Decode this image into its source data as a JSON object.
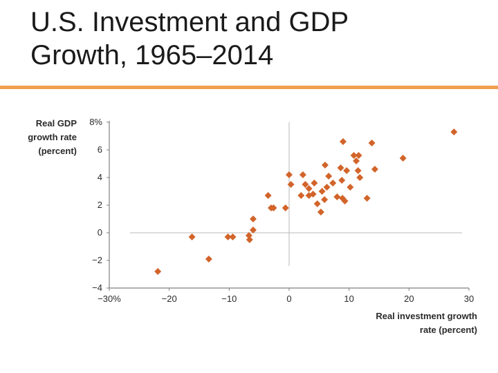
{
  "title_line1": "U.S. Investment and GDP",
  "title_line2": "Growth, 1965–2014",
  "colors": {
    "accent": "#f0a050",
    "marker": "#d2642a",
    "axis": "#7f7f7f",
    "grid": "#b8b8b8"
  },
  "chart_data": {
    "type": "scatter",
    "title": "U.S. Investment and GDP Growth, 1965–2014",
    "xlabel_lines": [
      "Real investment growth",
      "rate (percent)"
    ],
    "ylabel_lines": [
      "Real GDP",
      "growth rate",
      "(percent)"
    ],
    "xlim": [
      -30,
      30
    ],
    "ylim": [
      -4,
      8
    ],
    "xticks": [
      -30,
      -20,
      -10,
      0,
      10,
      20,
      30
    ],
    "yticks": [
      -4,
      -2,
      0,
      2,
      4,
      6,
      8
    ],
    "xtick_labels": [
      "−30%",
      "−20",
      "−10",
      "0",
      "10",
      "20",
      "30"
    ],
    "ytick_labels": [
      "−4",
      "−2",
      "0",
      "2",
      "4",
      "6",
      "8%"
    ],
    "reference_lines": {
      "x": 0,
      "y": 0
    },
    "points": [
      {
        "x": 27.5,
        "y": 7.3
      },
      {
        "x": 9.0,
        "y": 6.6
      },
      {
        "x": 13.8,
        "y": 6.5
      },
      {
        "x": 10.8,
        "y": 5.6
      },
      {
        "x": 11.6,
        "y": 5.6
      },
      {
        "x": 19.0,
        "y": 5.4
      },
      {
        "x": 11.2,
        "y": 5.2
      },
      {
        "x": 6.0,
        "y": 4.9
      },
      {
        "x": 8.6,
        "y": 4.7
      },
      {
        "x": 9.6,
        "y": 4.5
      },
      {
        "x": 14.3,
        "y": 4.6
      },
      {
        "x": 11.5,
        "y": 4.5
      },
      {
        "x": 0.0,
        "y": 4.2
      },
      {
        "x": 2.3,
        "y": 4.2
      },
      {
        "x": 6.6,
        "y": 4.1
      },
      {
        "x": 11.8,
        "y": 4.0
      },
      {
        "x": 8.8,
        "y": 3.8
      },
      {
        "x": 0.3,
        "y": 3.5
      },
      {
        "x": 2.7,
        "y": 3.5
      },
      {
        "x": 4.2,
        "y": 3.6
      },
      {
        "x": 7.3,
        "y": 3.6
      },
      {
        "x": 6.3,
        "y": 3.3
      },
      {
        "x": 3.3,
        "y": 3.2
      },
      {
        "x": 10.2,
        "y": 3.3
      },
      {
        "x": 5.5,
        "y": 3.0
      },
      {
        "x": 2.0,
        "y": 2.7
      },
      {
        "x": 3.3,
        "y": 2.7
      },
      {
        "x": 4.0,
        "y": 2.8
      },
      {
        "x": 8.0,
        "y": 2.6
      },
      {
        "x": -3.5,
        "y": 2.7
      },
      {
        "x": 8.9,
        "y": 2.5
      },
      {
        "x": 5.9,
        "y": 2.4
      },
      {
        "x": 9.3,
        "y": 2.3
      },
      {
        "x": 13.0,
        "y": 2.5
      },
      {
        "x": 4.7,
        "y": 2.1
      },
      {
        "x": -3.0,
        "y": 1.8
      },
      {
        "x": -2.6,
        "y": 1.8
      },
      {
        "x": -0.6,
        "y": 1.8
      },
      {
        "x": 5.3,
        "y": 1.5
      },
      {
        "x": -6.0,
        "y": 1.0
      },
      {
        "x": -6.0,
        "y": 0.2
      },
      {
        "x": -16.2,
        "y": -0.3
      },
      {
        "x": -10.2,
        "y": -0.3
      },
      {
        "x": -9.4,
        "y": -0.3
      },
      {
        "x": -6.7,
        "y": -0.2
      },
      {
        "x": -6.6,
        "y": -0.5
      },
      {
        "x": -13.4,
        "y": -1.9
      },
      {
        "x": -21.9,
        "y": -2.8
      }
    ]
  }
}
